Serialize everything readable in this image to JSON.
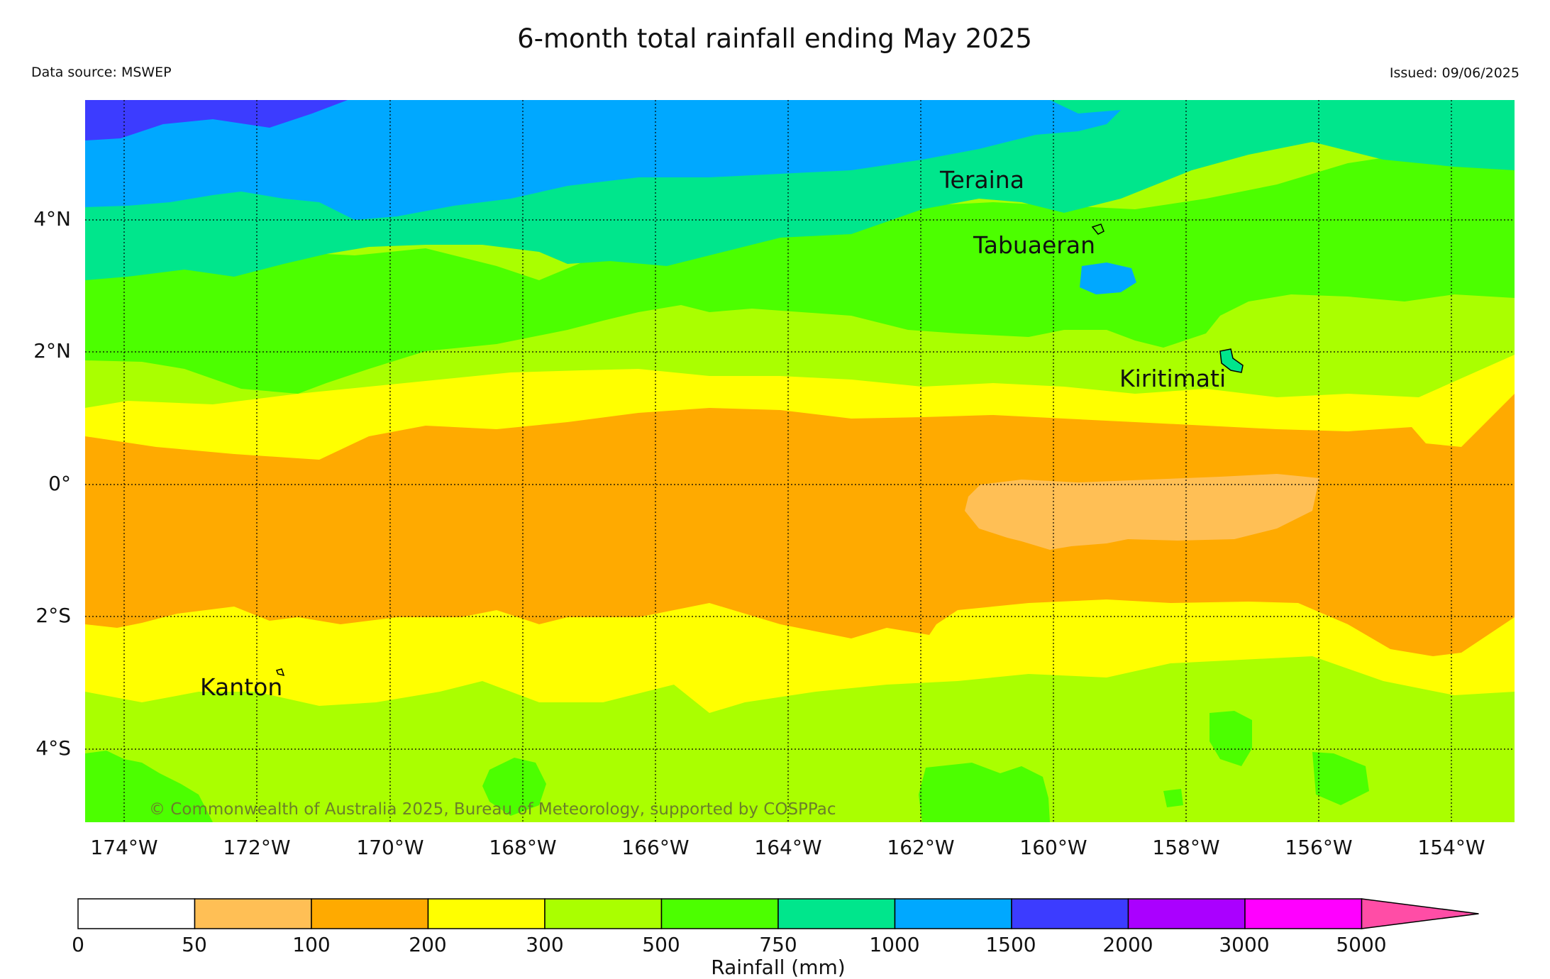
{
  "title": "6-month total rainfall ending May 2025",
  "data_source": "Data source: MSWEP",
  "issued": "Issued: 09/06/2025",
  "copyright": "© Commonwealth of Australia 2025, Bureau of Meteorology, supported by COSPPac",
  "map": {
    "lon_range": [
      -174.6,
      -153.0
    ],
    "lat_range": [
      -5.1,
      5.8
    ],
    "x_ticks": [
      {
        "value": -174,
        "label": "174°W"
      },
      {
        "value": -172,
        "label": "172°W"
      },
      {
        "value": -170,
        "label": "170°W"
      },
      {
        "value": -168,
        "label": "168°W"
      },
      {
        "value": -166,
        "label": "166°W"
      },
      {
        "value": -164,
        "label": "164°W"
      },
      {
        "value": -162,
        "label": "162°W"
      },
      {
        "value": -160,
        "label": "160°W"
      },
      {
        "value": -158,
        "label": "158°W"
      },
      {
        "value": -156,
        "label": "156°W"
      },
      {
        "value": -154,
        "label": "154°W"
      }
    ],
    "y_ticks": [
      {
        "value": 4,
        "label": "4°N"
      },
      {
        "value": 2,
        "label": "2°N"
      },
      {
        "value": 0,
        "label": "0°"
      },
      {
        "value": -2,
        "label": "2°S"
      },
      {
        "value": -4,
        "label": "4°S"
      }
    ],
    "places": [
      {
        "name": "Teraina",
        "lon": -159.4,
        "lat": 4.7
      },
      {
        "name": "Tabuaeran",
        "lon": -159.3,
        "lat": 3.9
      },
      {
        "name": "Kiritimati",
        "lon": -157.4,
        "lat": 1.9
      },
      {
        "name": "Kanton",
        "lon": -171.7,
        "lat": -2.8
      }
    ]
  },
  "colorbar": {
    "label": "Rainfall (mm)",
    "ticks": [
      "0",
      "50",
      "100",
      "200",
      "300",
      "500",
      "750",
      "1000",
      "1500",
      "2000",
      "3000",
      "5000"
    ],
    "colors": [
      "#ffffff",
      "#ffbf55",
      "#ffaa00",
      "#ffff00",
      "#aaff00",
      "#4cff00",
      "#00e68c",
      "#00a8ff",
      "#3c3cff",
      "#aa00ff",
      "#ff00ff",
      "#ff4da6"
    ]
  }
}
